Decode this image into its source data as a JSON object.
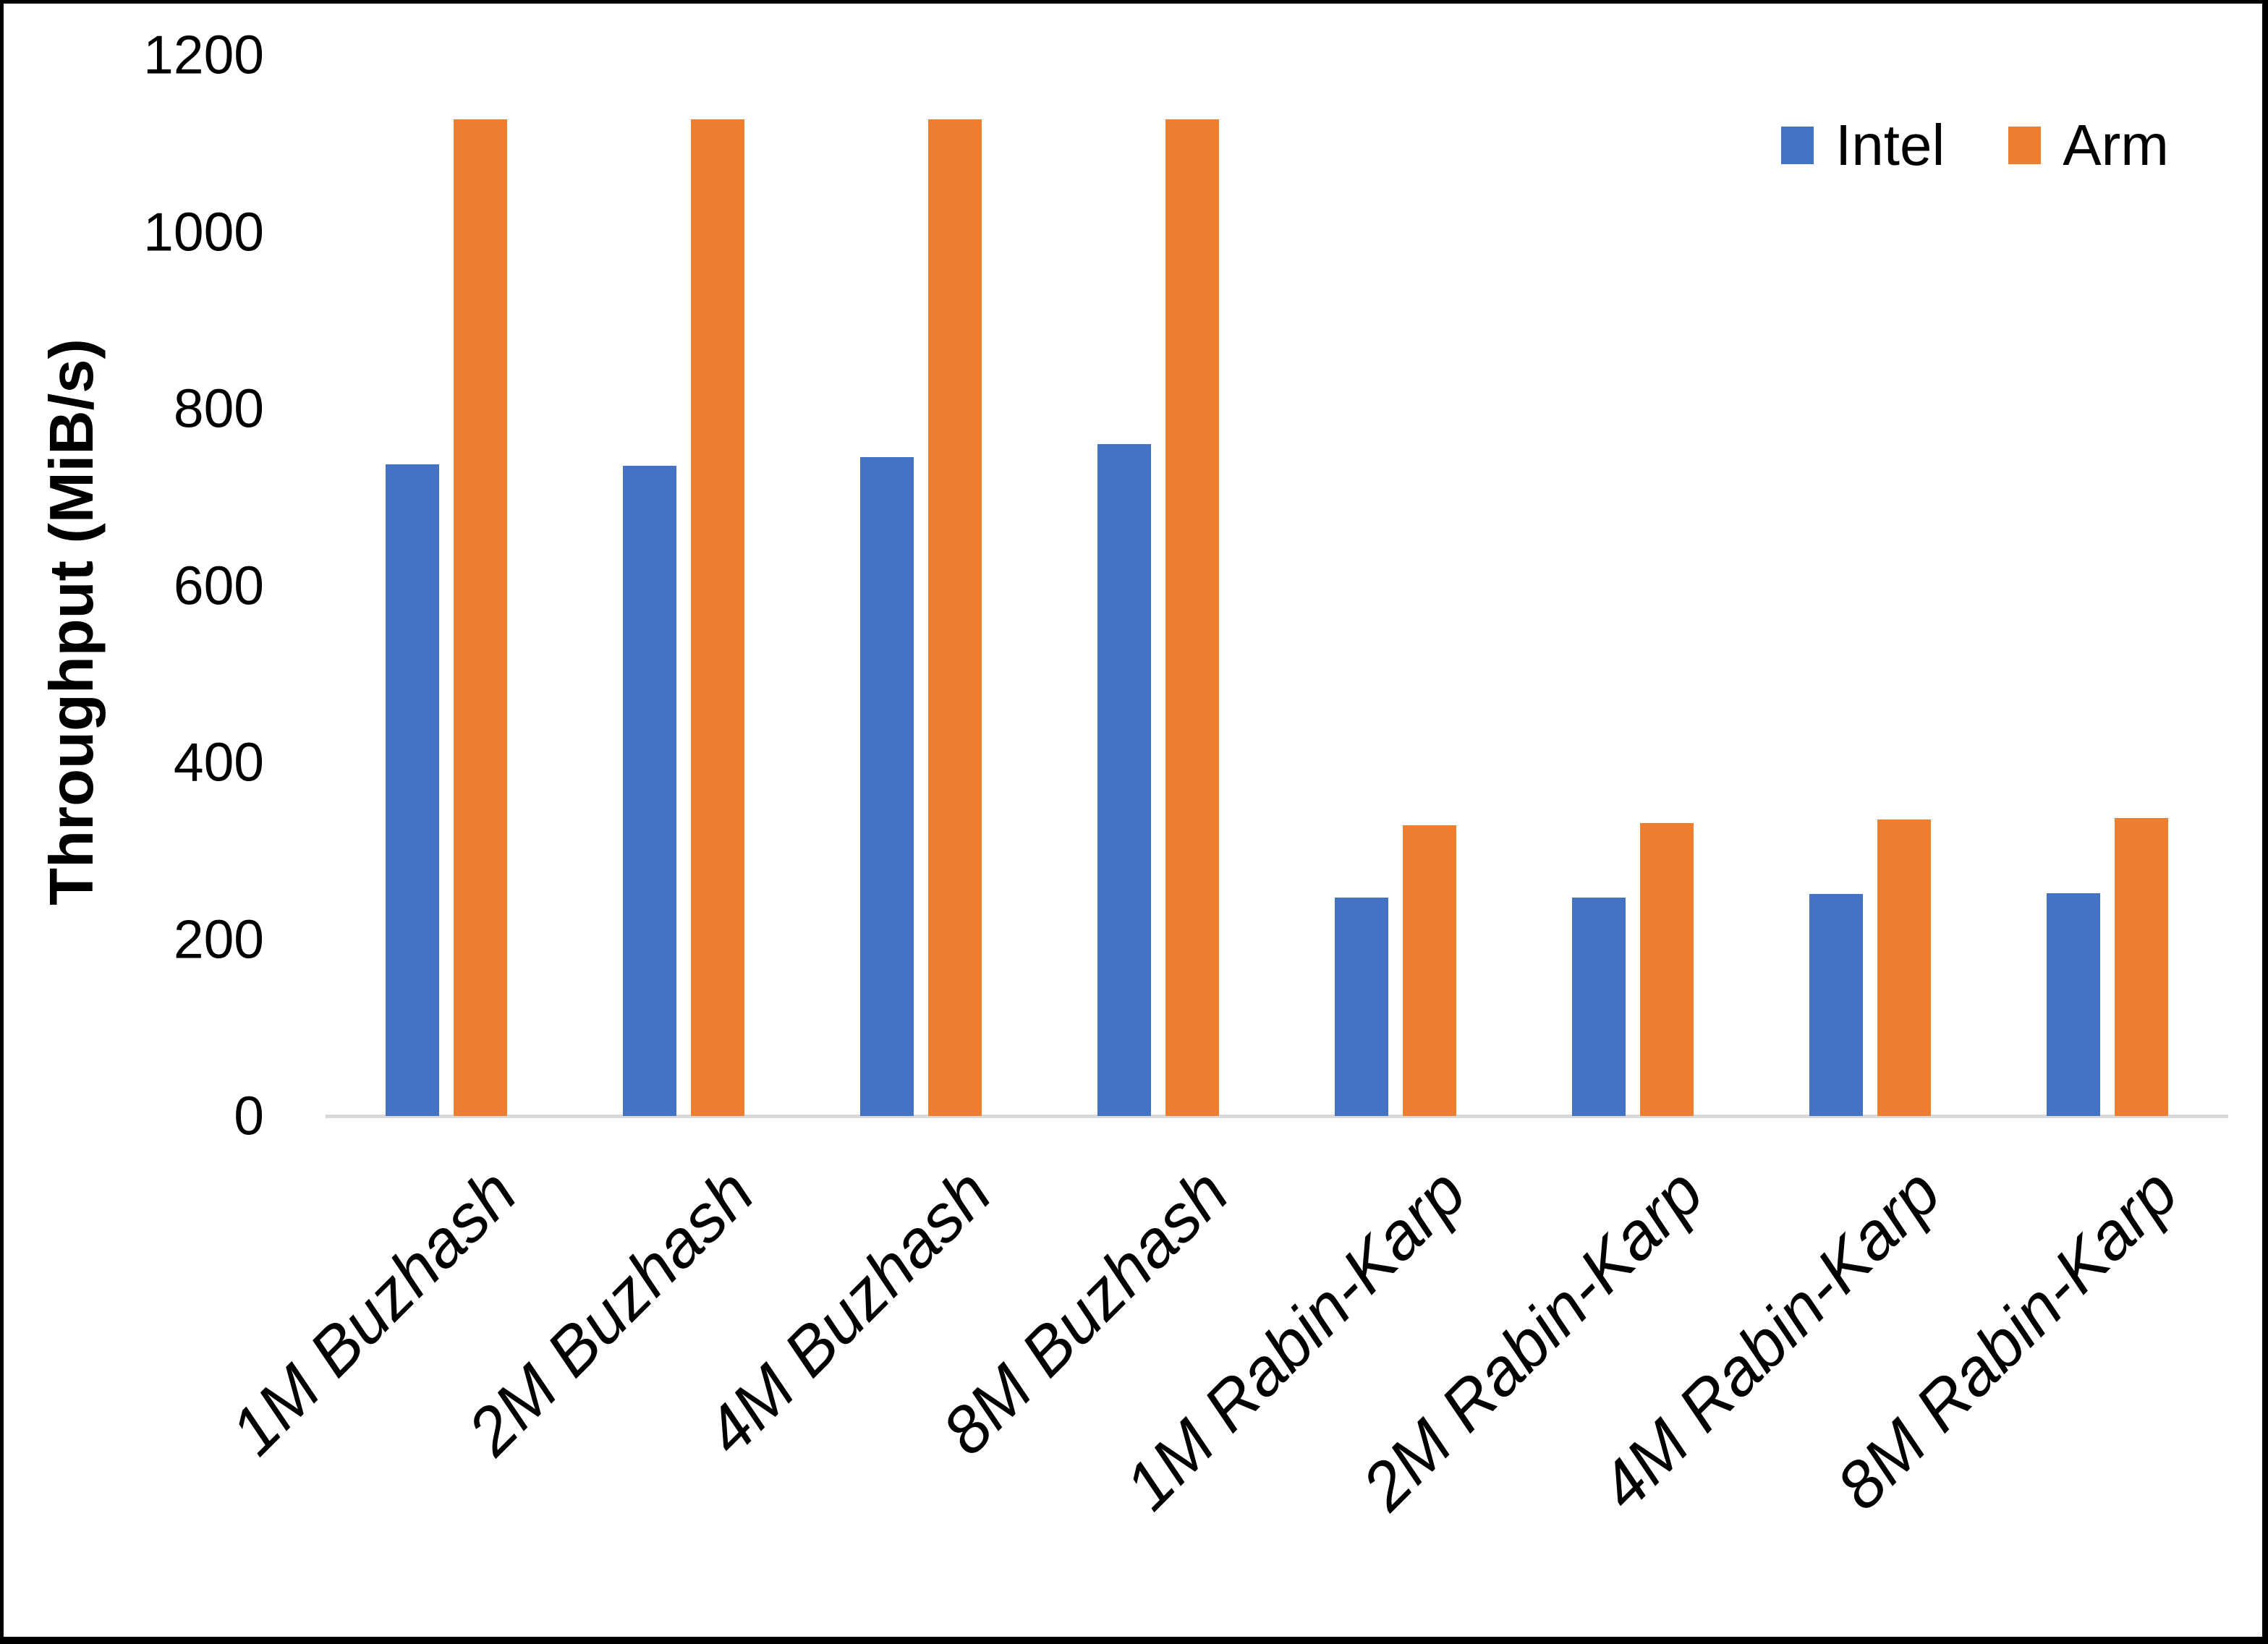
{
  "chart_data": {
    "type": "bar",
    "title": "",
    "xlabel": "",
    "ylabel": "Throughput (MiB/s)",
    "ylim": [
      0,
      1200
    ],
    "ytick_step": 200,
    "yticks": [
      1200,
      1000,
      800,
      600,
      400,
      200,
      0
    ],
    "grid": false,
    "legend_position": "top-right",
    "categories": [
      "1M Buzhash",
      "2M Buzhash",
      "4M Buzhash",
      "8M Buzhash",
      "1M Rabin-Karp",
      "2M Rabin-Karp",
      "4M Rabin-Karp",
      "8M Rabin-Karp"
    ],
    "series": [
      {
        "name": "Intel",
        "color": "#4472C4",
        "values": [
          737,
          735,
          745,
          760,
          247,
          247,
          251,
          252
        ]
      },
      {
        "name": "Arm",
        "color": "#ED7D31",
        "values": [
          1127,
          1127,
          1127,
          1127,
          329,
          331,
          335,
          337
        ]
      }
    ],
    "colors": {
      "axis_line": "#D9D9D9",
      "text": "#000000",
      "frame": "#000000",
      "background": "#FFFFFF"
    }
  }
}
